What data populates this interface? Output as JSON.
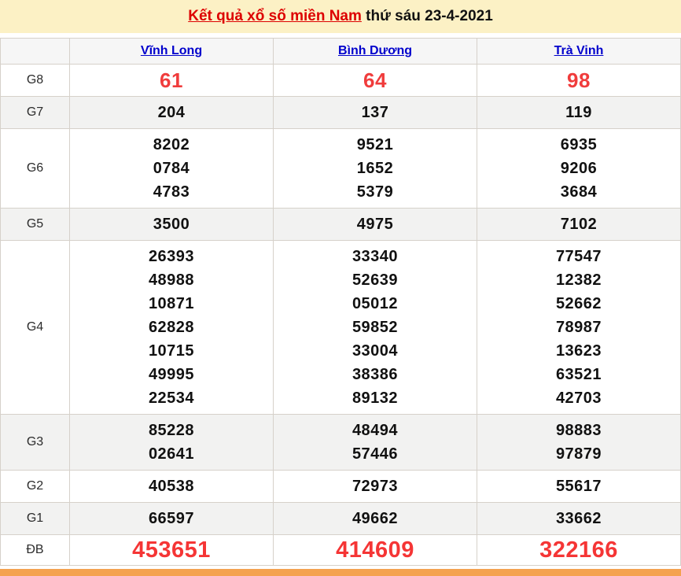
{
  "banner": {
    "title_link": "Kết quả xổ số miền Nam",
    "title_rest": " thứ sáu 23-4-2021"
  },
  "table": {
    "columns": [
      "Vĩnh Long",
      "Bình Dương",
      "Trà Vinh"
    ],
    "rows": [
      {
        "label": "G8",
        "style": "red-large",
        "values": [
          [
            "61"
          ],
          [
            "64"
          ],
          [
            "98"
          ]
        ]
      },
      {
        "label": "G7",
        "style": "normal",
        "values": [
          [
            "204"
          ],
          [
            "137"
          ],
          [
            "119"
          ]
        ]
      },
      {
        "label": "G6",
        "style": "normal",
        "values": [
          [
            "8202",
            "0784",
            "4783"
          ],
          [
            "9521",
            "1652",
            "5379"
          ],
          [
            "6935",
            "9206",
            "3684"
          ]
        ]
      },
      {
        "label": "G5",
        "style": "normal",
        "values": [
          [
            "3500"
          ],
          [
            "4975"
          ],
          [
            "7102"
          ]
        ]
      },
      {
        "label": "G4",
        "style": "normal",
        "values": [
          [
            "26393",
            "48988",
            "10871",
            "62828",
            "10715",
            "49995",
            "22534"
          ],
          [
            "33340",
            "52639",
            "05012",
            "59852",
            "33004",
            "38386",
            "89132"
          ],
          [
            "77547",
            "12382",
            "52662",
            "78987",
            "13623",
            "63521",
            "42703"
          ]
        ]
      },
      {
        "label": "G3",
        "style": "normal",
        "values": [
          [
            "85228",
            "02641"
          ],
          [
            "48494",
            "57446"
          ],
          [
            "98883",
            "97879"
          ]
        ]
      },
      {
        "label": "G2",
        "style": "normal",
        "values": [
          [
            "40538"
          ],
          [
            "72973"
          ],
          [
            "55617"
          ]
        ]
      },
      {
        "label": "G1",
        "style": "normal",
        "values": [
          [
            "66597"
          ],
          [
            "49662"
          ],
          [
            "33662"
          ]
        ]
      },
      {
        "label": "ĐB",
        "style": "red-xlarge",
        "values": [
          [
            "453651"
          ],
          [
            "414609"
          ],
          [
            "322166"
          ]
        ]
      }
    ]
  },
  "colors": {
    "banner_bg": "#fcf1c5",
    "title_red": "#dd0000",
    "link_blue": "#0000cc",
    "number_red": "#f03c3c",
    "special_red": "#f53535",
    "border": "#d6d1ca",
    "alt_row_bg": "#f2f2f1",
    "orange_bar": "#f4a24f"
  }
}
